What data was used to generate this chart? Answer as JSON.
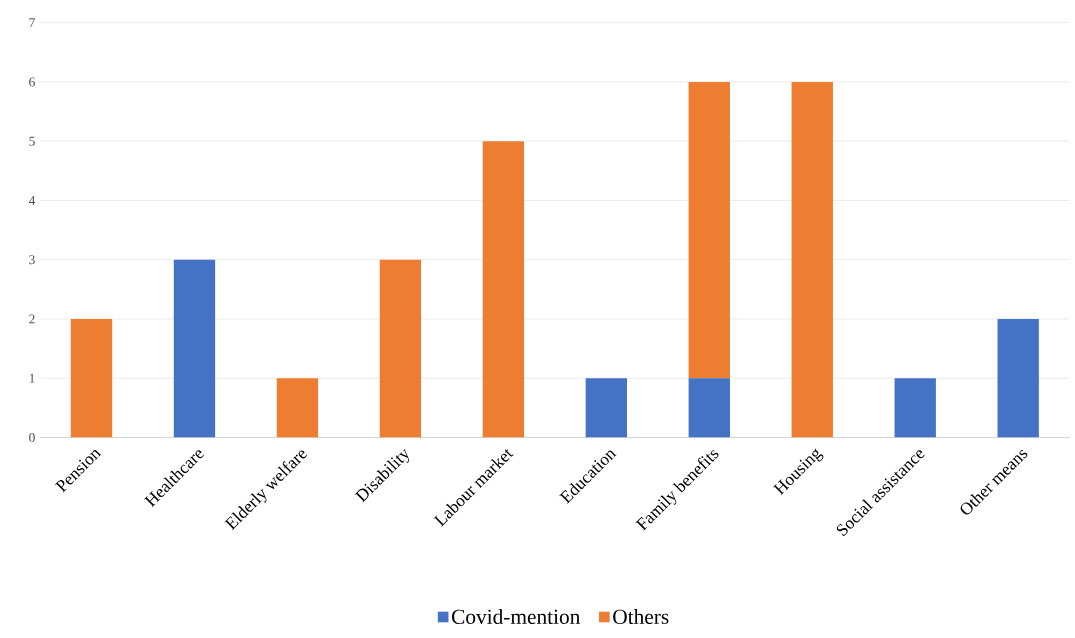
{
  "chart_data": {
    "type": "bar",
    "stacked": true,
    "categories": [
      "Pension",
      "Healthcare",
      "Elderly welfare",
      "Disability",
      "Labour market",
      "Education",
      "Family benefits",
      "Housing",
      "Social assistance",
      "Other means"
    ],
    "series": [
      {
        "name": "Covid-mention",
        "color": "#4472c4",
        "values": [
          0,
          3,
          0,
          0,
          0,
          1,
          1,
          0,
          1,
          2
        ]
      },
      {
        "name": "Others",
        "color": "#ed7d31",
        "values": [
          2,
          0,
          1,
          3,
          5,
          0,
          5,
          6,
          0,
          0
        ]
      }
    ],
    "ylim": [
      0,
      7
    ],
    "yticks": [
      0,
      1,
      2,
      3,
      4,
      5,
      6,
      7
    ],
    "grid": "y",
    "legend": "bottom"
  }
}
